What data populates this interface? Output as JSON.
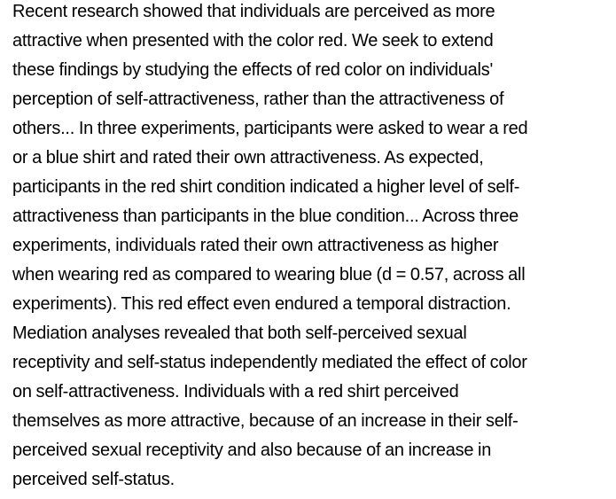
{
  "document": {
    "lines": [
      "Recent research showed that individuals are perceived as more",
      "attractive when presented with the color red.  We seek to extend",
      "these findings by studying the effects of red color on individuals'",
      "perception of self-attractiveness, rather than the attractiveness of",
      "others...  In three experiments, participants were asked to wear a red",
      "or a blue shirt and rated their own attractiveness. As expected,",
      "participants in the red shirt condition indicated a higher level of self-",
      "attractiveness than participants in the blue condition... Across three",
      "experiments, individuals rated their own attractiveness as higher",
      "when wearing red as compared to wearing blue (d = 0.57, across all",
      "experiments). This red effect even endured a temporal distraction.",
      "Mediation analyses revealed that both self-perceived sexual",
      "receptivity and self-status independently mediated the effect of color",
      "on self-attractiveness. Individuals with a red shirt perceived",
      "themselves as more attractive, because of an increase in their self-",
      "perceived sexual receptivity and also because of an increase in",
      "perceived self-status."
    ]
  }
}
